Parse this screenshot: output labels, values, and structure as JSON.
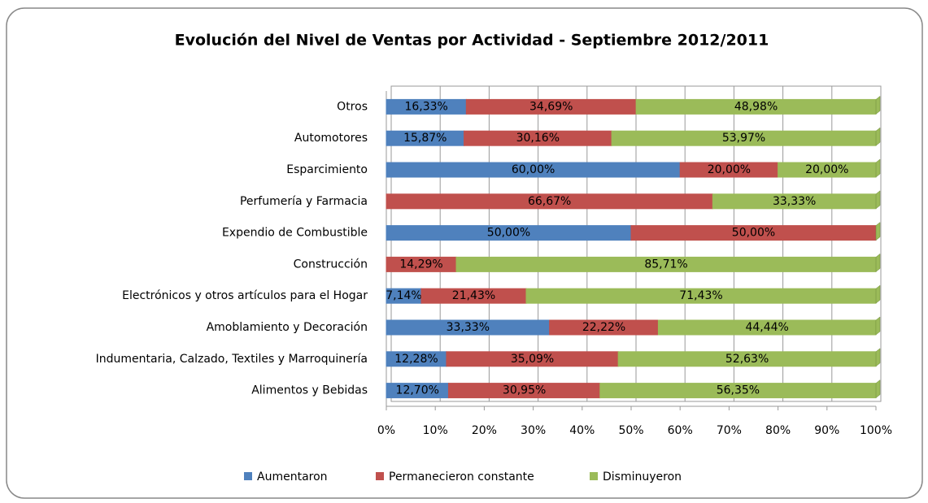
{
  "chart_data": {
    "type": "bar",
    "orientation": "horizontal",
    "stacked": true,
    "title": "Evolución del Nivel de Ventas por Actividad - Septiembre 2012/2011",
    "categories": [
      "Otros",
      "Automotores",
      "Esparcimiento",
      "Perfumería y Farmacia",
      "Expendio de Combustible",
      "Construcción",
      "Electrónicos y otros artículos para el Hogar",
      "Amoblamiento y Decoración",
      "Indumentaria, Calzado, Textiles y Marroquinería",
      "Alimentos y Bebidas"
    ],
    "series": [
      {
        "name": "Aumentaron",
        "color": "#4f81bd",
        "values": [
          16.33,
          15.87,
          60,
          0,
          50,
          0,
          7.14,
          33.33,
          12.28,
          12.7
        ],
        "value_labels": [
          "16,33%",
          "15,87%",
          "60,00%",
          null,
          "50,00%",
          null,
          "7,14%",
          "33,33%",
          "12,28%",
          "12,70%"
        ]
      },
      {
        "name": "Permanecieron constante",
        "color": "#c0504d",
        "values": [
          34.69,
          30.16,
          20,
          66.67,
          50,
          14.29,
          21.43,
          22.22,
          35.09,
          30.95
        ],
        "value_labels": [
          "34,69%",
          "30,16%",
          "20,00%",
          "66,67%",
          "50,00%",
          "14,29%",
          "21,43%",
          "22,22%",
          "35,09%",
          "30,95%"
        ]
      },
      {
        "name": "Disminuyeron",
        "color": "#9bbb59",
        "values": [
          48.98,
          53.97,
          20,
          33.33,
          0,
          85.71,
          71.43,
          44.44,
          52.63,
          56.35
        ],
        "value_labels": [
          "48,98%",
          "53,97%",
          "20,00%",
          "33,33%",
          null,
          "85,71%",
          "71,43%",
          "44,44%",
          "52,63%",
          "56,35%"
        ]
      }
    ],
    "xlim": [
      0,
      100
    ],
    "xticks": [
      {
        "value": 0,
        "label": "0%"
      },
      {
        "value": 10,
        "label": "10%"
      },
      {
        "value": 20,
        "label": "20%"
      },
      {
        "value": 30,
        "label": "30%"
      },
      {
        "value": 40,
        "label": "40%"
      },
      {
        "value": 50,
        "label": "50%"
      },
      {
        "value": 60,
        "label": "60%"
      },
      {
        "value": 70,
        "label": "70%"
      },
      {
        "value": 80,
        "label": "80%"
      },
      {
        "value": 90,
        "label": "90%"
      },
      {
        "value": 100,
        "label": "100%"
      }
    ],
    "grid": true,
    "legend": "bottom"
  }
}
